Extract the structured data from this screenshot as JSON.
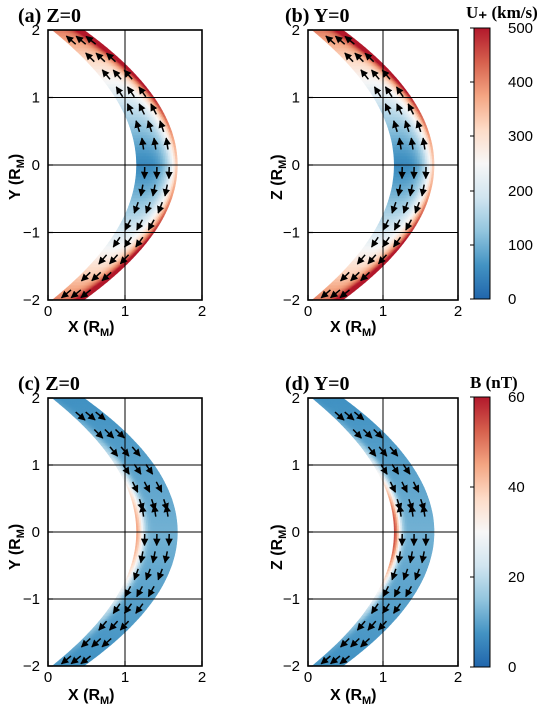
{
  "colorscale": [
    "#2166ac",
    "#4393c3",
    "#92c5de",
    "#d1e5f0",
    "#f7f7f7",
    "#fddbc7",
    "#f4a582",
    "#d6604d",
    "#b2182b"
  ],
  "chart_data": [
    {
      "type": "heatmap",
      "panel": "a",
      "title": "(a) Z=0",
      "xlabel": "X (R_M)",
      "ylabel": "Y (R_M)",
      "xlim": [
        0,
        2
      ],
      "ylim": [
        -2,
        2
      ],
      "xticks": [
        "0",
        "1",
        "2"
      ],
      "yticks": [
        "2",
        "1",
        "0",
        "−1",
        "−2"
      ],
      "quantity": "U+",
      "inner_boundary": {
        "nose_x": 1.15,
        "y_scale": 2.05
      },
      "outer_boundary": {
        "nose_x": 1.68,
        "y_scale": 2.35
      },
      "field_summary": "flow speed low (~50 km/s) near the subsolar point, rising to ~500 km/s at the flanks and along the bow shock",
      "vectors": "arrows show tailward flow deflected around the obstacle"
    },
    {
      "type": "heatmap",
      "panel": "b",
      "title": "(b) Y=0",
      "xlabel": "X (R_M)",
      "ylabel": "Z (R_M)",
      "xlim": [
        0,
        2
      ],
      "ylim": [
        -2,
        2
      ],
      "xticks": [
        "0",
        "1",
        "2"
      ],
      "yticks": [
        "2",
        "1",
        "0",
        "−1",
        "−2"
      ],
      "quantity": "U+",
      "inner_boundary": {
        "nose_x": 1.15,
        "y_scale": 2.05
      },
      "outer_boundary": {
        "nose_x": 1.68,
        "y_scale": 2.35
      },
      "field_summary": "flow speed low near the nose, high toward the flanks",
      "vectors": "arrows show tailward flow deflected around the obstacle"
    },
    {
      "type": "heatmap",
      "panel": "c",
      "title": "(c) Z=0",
      "xlabel": "X (R_M)",
      "ylabel": "Y (R_M)",
      "xlim": [
        0,
        2
      ],
      "ylim": [
        -2,
        2
      ],
      "xticks": [
        "0",
        "1",
        "2"
      ],
      "yticks": [
        "2",
        "1",
        "0",
        "−1",
        "−2"
      ],
      "quantity": "B",
      "inner_boundary": {
        "nose_x": 1.15,
        "y_scale": 2.05
      },
      "outer_boundary": {
        "nose_x": 1.68,
        "y_scale": 2.35
      },
      "field_summary": "magnetic field strongest (~45 nT) in a thin layer at the inner boundary near the nose, ~10-15 nT elsewhere",
      "vectors": "arrows show field direction draped around the obstacle"
    },
    {
      "type": "heatmap",
      "panel": "d",
      "title": "(d) Y=0",
      "xlabel": "X (R_M)",
      "ylabel": "Z (R_M)",
      "xlim": [
        0,
        2
      ],
      "ylim": [
        -2,
        2
      ],
      "xticks": [
        "0",
        "1",
        "2"
      ],
      "yticks": [
        "2",
        "1",
        "0",
        "−1",
        "−2"
      ],
      "quantity": "B",
      "inner_boundary": {
        "nose_x": 1.15,
        "y_scale": 2.05
      },
      "outer_boundary": {
        "nose_x": 1.68,
        "y_scale": 2.35
      },
      "field_summary": "magnetic field pile-up (~55 nT) at the inner boundary near the nose",
      "vectors": "arrows show field direction draped around the obstacle"
    }
  ],
  "colorbars": [
    {
      "title": "U₊ (km/s)",
      "ticks": [
        "500",
        "400",
        "300",
        "200",
        "100",
        "0"
      ],
      "range": [
        0,
        500
      ]
    },
    {
      "title": "B (nT)",
      "ticks": [
        "60",
        "40",
        "20",
        "0"
      ],
      "range": [
        0,
        60
      ]
    }
  ]
}
